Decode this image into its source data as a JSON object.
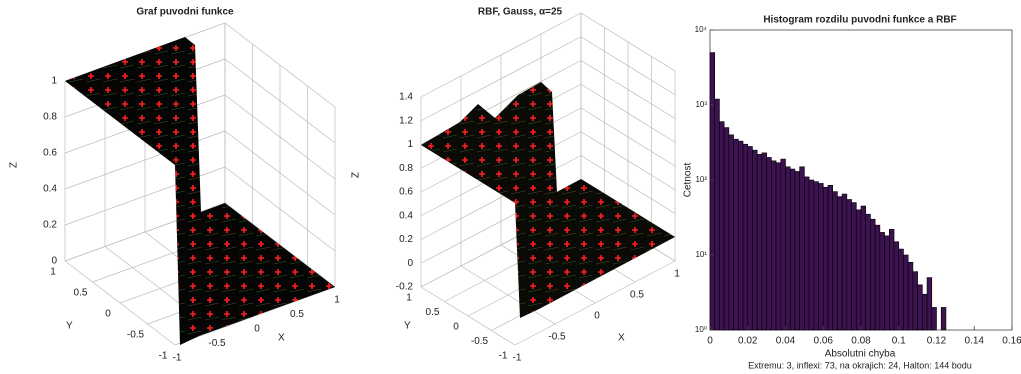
{
  "chart_data": [
    {
      "type": "surface",
      "title": "Graf puvodni funkce",
      "xlabel": "X",
      "ylabel": "Y",
      "zlabel": "Z",
      "xlim": [
        -1,
        1
      ],
      "ylim": [
        -1,
        1
      ],
      "zlim": [
        0,
        1
      ],
      "xticks": [
        -1,
        -0.5,
        0,
        0.5,
        1
      ],
      "yticks": [
        -1,
        -0.5,
        0,
        0.5,
        1
      ],
      "zticks": [
        0,
        0.2,
        0.4,
        0.6,
        0.8,
        1
      ]
    },
    {
      "type": "surface",
      "title": "RBF, Gauss,    α=25",
      "xlabel": "X",
      "ylabel": "Y",
      "zlabel": "Z",
      "xlim": [
        -1,
        1
      ],
      "ylim": [
        -1,
        1
      ],
      "zlim": [
        -0.2,
        1.4
      ],
      "xticks": [
        -1,
        -0.5,
        0,
        0.5,
        1
      ],
      "yticks": [
        -1,
        -0.5,
        0,
        0.5,
        1
      ],
      "zticks": [
        -0.2,
        0,
        0.2,
        0.4,
        0.6,
        0.8,
        1,
        1.2,
        1.4
      ]
    },
    {
      "type": "histogram",
      "title": "Histogram rozdilu puvodni funkce a RBF",
      "xlabel": "Absolutni chyba",
      "ylabel": "Cetnost",
      "caption": "Extremu: 3, inflexi: 73, na okrajich: 24, Halton: 144 bodu",
      "log_y": true,
      "color": "#3d1250",
      "bins": [
        0,
        0.0025,
        0.005,
        0.0075,
        0.01,
        0.0125,
        0.015,
        0.0175,
        0.02,
        0.0225,
        0.025,
        0.0275,
        0.03,
        0.0325,
        0.035,
        0.0375,
        0.04,
        0.0425,
        0.045,
        0.0475,
        0.05,
        0.0525,
        0.055,
        0.0575,
        0.06,
        0.0625,
        0.065,
        0.0675,
        0.07,
        0.0725,
        0.075,
        0.0775,
        0.08,
        0.0825,
        0.085,
        0.0875,
        0.09,
        0.0925,
        0.095,
        0.0975,
        0.1,
        0.1025,
        0.105,
        0.1075,
        0.11,
        0.1125,
        0.115,
        0.1175,
        0.12,
        0.1225,
        0.125
      ],
      "values": [
        5000,
        1200,
        600,
        500,
        400,
        350,
        330,
        300,
        280,
        250,
        220,
        230,
        200,
        180,
        170,
        190,
        150,
        140,
        130,
        150,
        110,
        100,
        95,
        90,
        80,
        85,
        70,
        60,
        65,
        55,
        50,
        40,
        45,
        35,
        30,
        25,
        20,
        18,
        22,
        15,
        12,
        10,
        8,
        6,
        4,
        3,
        5,
        2,
        1,
        2
      ],
      "xlim": [
        0,
        0.16
      ],
      "ylim": [
        1,
        10000
      ],
      "xticks": [
        0,
        0.02,
        0.04,
        0.06,
        0.08,
        0.1,
        0.12,
        0.14,
        0.16
      ],
      "yticks": [
        {
          "value": 1,
          "label": "10⁰"
        },
        {
          "value": 10,
          "label": "10¹"
        },
        {
          "value": 100,
          "label": "10²"
        },
        {
          "value": 1000,
          "label": "10³"
        },
        {
          "value": 10000,
          "label": "10⁴"
        }
      ]
    }
  ]
}
